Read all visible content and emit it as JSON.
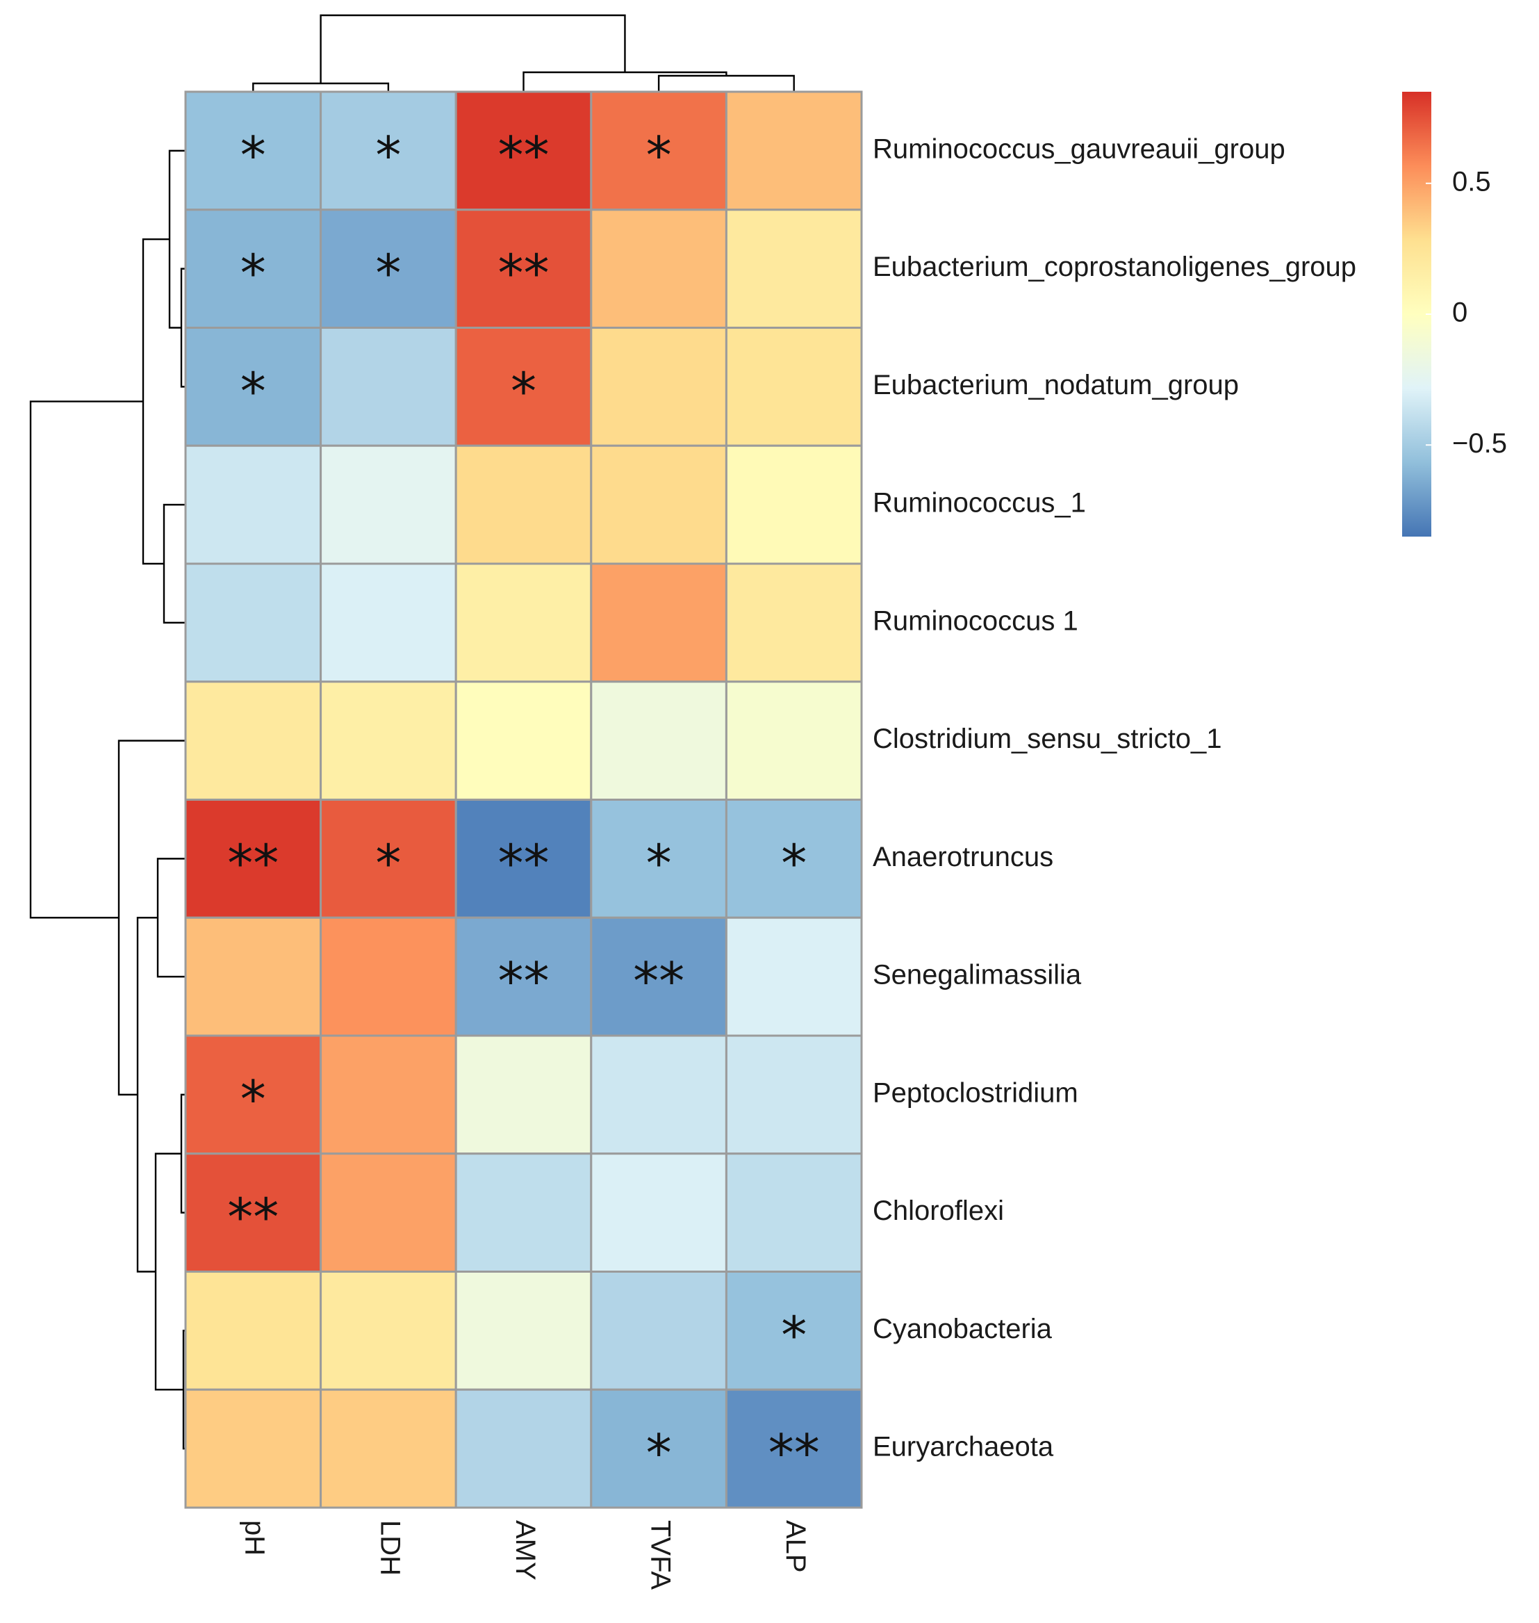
{
  "chart_data": {
    "type": "heatmap",
    "title": "",
    "columns": [
      "pH",
      "LDH",
      "AMY",
      "TVFA",
      "ALP"
    ],
    "rows": [
      "Ruminococcus_gauvreauii_group",
      "Eubacterium_coprostanoligenes_group",
      "Eubacterium_nodatum_group",
      "Ruminococcus_1",
      "Ruminococcus 1",
      "Clostridium_sensu_stricto_1",
      "Anaerotruncus",
      "Senegalimassilia",
      "Peptoclostridium",
      "Chloroflexi",
      "Cyanobacteria",
      "Euryarchaeota"
    ],
    "values": [
      [
        -0.55,
        -0.5,
        0.82,
        0.65,
        0.4
      ],
      [
        -0.6,
        -0.65,
        0.75,
        0.4,
        0.2
      ],
      [
        -0.6,
        -0.45,
        0.7,
        0.3,
        0.25
      ],
      [
        -0.35,
        -0.25,
        0.3,
        0.3,
        0.05
      ],
      [
        -0.4,
        -0.3,
        0.15,
        0.5,
        0.2
      ],
      [
        0.2,
        0.15,
        0.02,
        -0.15,
        -0.08
      ],
      [
        0.82,
        0.72,
        -0.8,
        -0.55,
        -0.55
      ],
      [
        0.4,
        0.55,
        -0.65,
        -0.7,
        -0.3
      ],
      [
        0.7,
        0.5,
        -0.15,
        -0.35,
        -0.35
      ],
      [
        0.75,
        0.5,
        -0.4,
        -0.3,
        -0.4
      ],
      [
        0.25,
        0.2,
        -0.15,
        -0.45,
        -0.55
      ],
      [
        0.35,
        0.35,
        -0.45,
        -0.6,
        -0.75
      ]
    ],
    "significance": [
      [
        "*",
        "*",
        "**",
        "*",
        ""
      ],
      [
        "*",
        "*",
        "**",
        "",
        ""
      ],
      [
        "*",
        "",
        "*",
        "",
        ""
      ],
      [
        "",
        "",
        "",
        "",
        ""
      ],
      [
        "",
        "",
        "",
        "",
        ""
      ],
      [
        "",
        "",
        "",
        "",
        ""
      ],
      [
        "**",
        "*",
        "**",
        "*",
        "*"
      ],
      [
        "",
        "",
        "**",
        "**",
        ""
      ],
      [
        "*",
        "",
        "",
        "",
        ""
      ],
      [
        "**",
        "",
        "",
        "",
        ""
      ],
      [
        "",
        "",
        "",
        "",
        "*"
      ],
      [
        "",
        "",
        "",
        "*",
        "**"
      ]
    ],
    "color_scale": {
      "range": [
        -0.85,
        0.85
      ],
      "ticks": [
        0.5,
        0,
        -0.5
      ],
      "tick_labels": [
        "0.5",
        "0",
        "−0.5"
      ],
      "colors": [
        "#4575b4",
        "#91bfdb",
        "#e0f3f8",
        "#ffffbf",
        "#fee090",
        "#fc8d59",
        "#d73027"
      ]
    },
    "legend_position": "right",
    "row_dendrogram": true,
    "column_dendrogram": true
  }
}
